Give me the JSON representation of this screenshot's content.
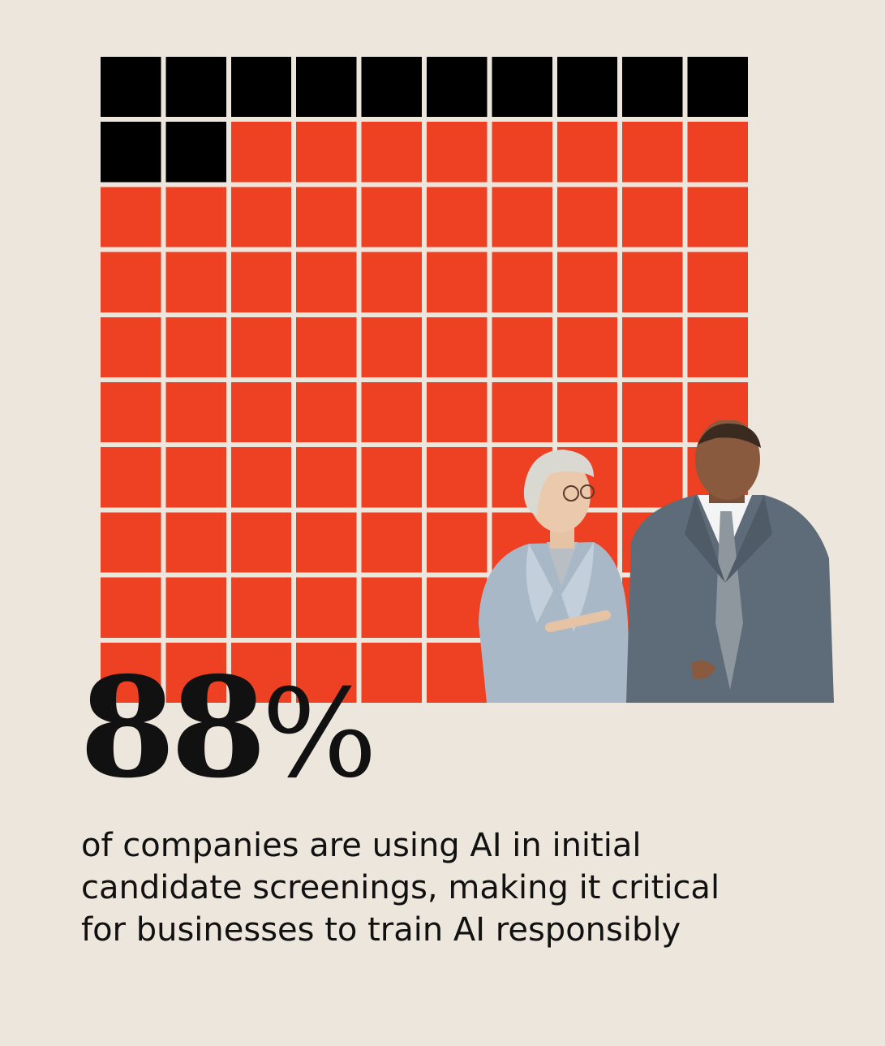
{
  "chart_data": {
    "type": "waffle",
    "total_cells": 100,
    "rows": 10,
    "columns": 10,
    "highlighted_value": 88,
    "remainder_value": 12,
    "highlight_color": "#EE4023",
    "remainder_color": "#000000",
    "fill_order": "remainder-first, left-to-right, top-to-bottom"
  },
  "stat": {
    "number": "88",
    "percent_sign": "%"
  },
  "caption_lines": [
    "of companies are using AI in initial",
    "candidate screenings, making it critical",
    "for businesses to train AI responsibly"
  ],
  "photo": {
    "subject": "two-business-professionals-icon"
  }
}
